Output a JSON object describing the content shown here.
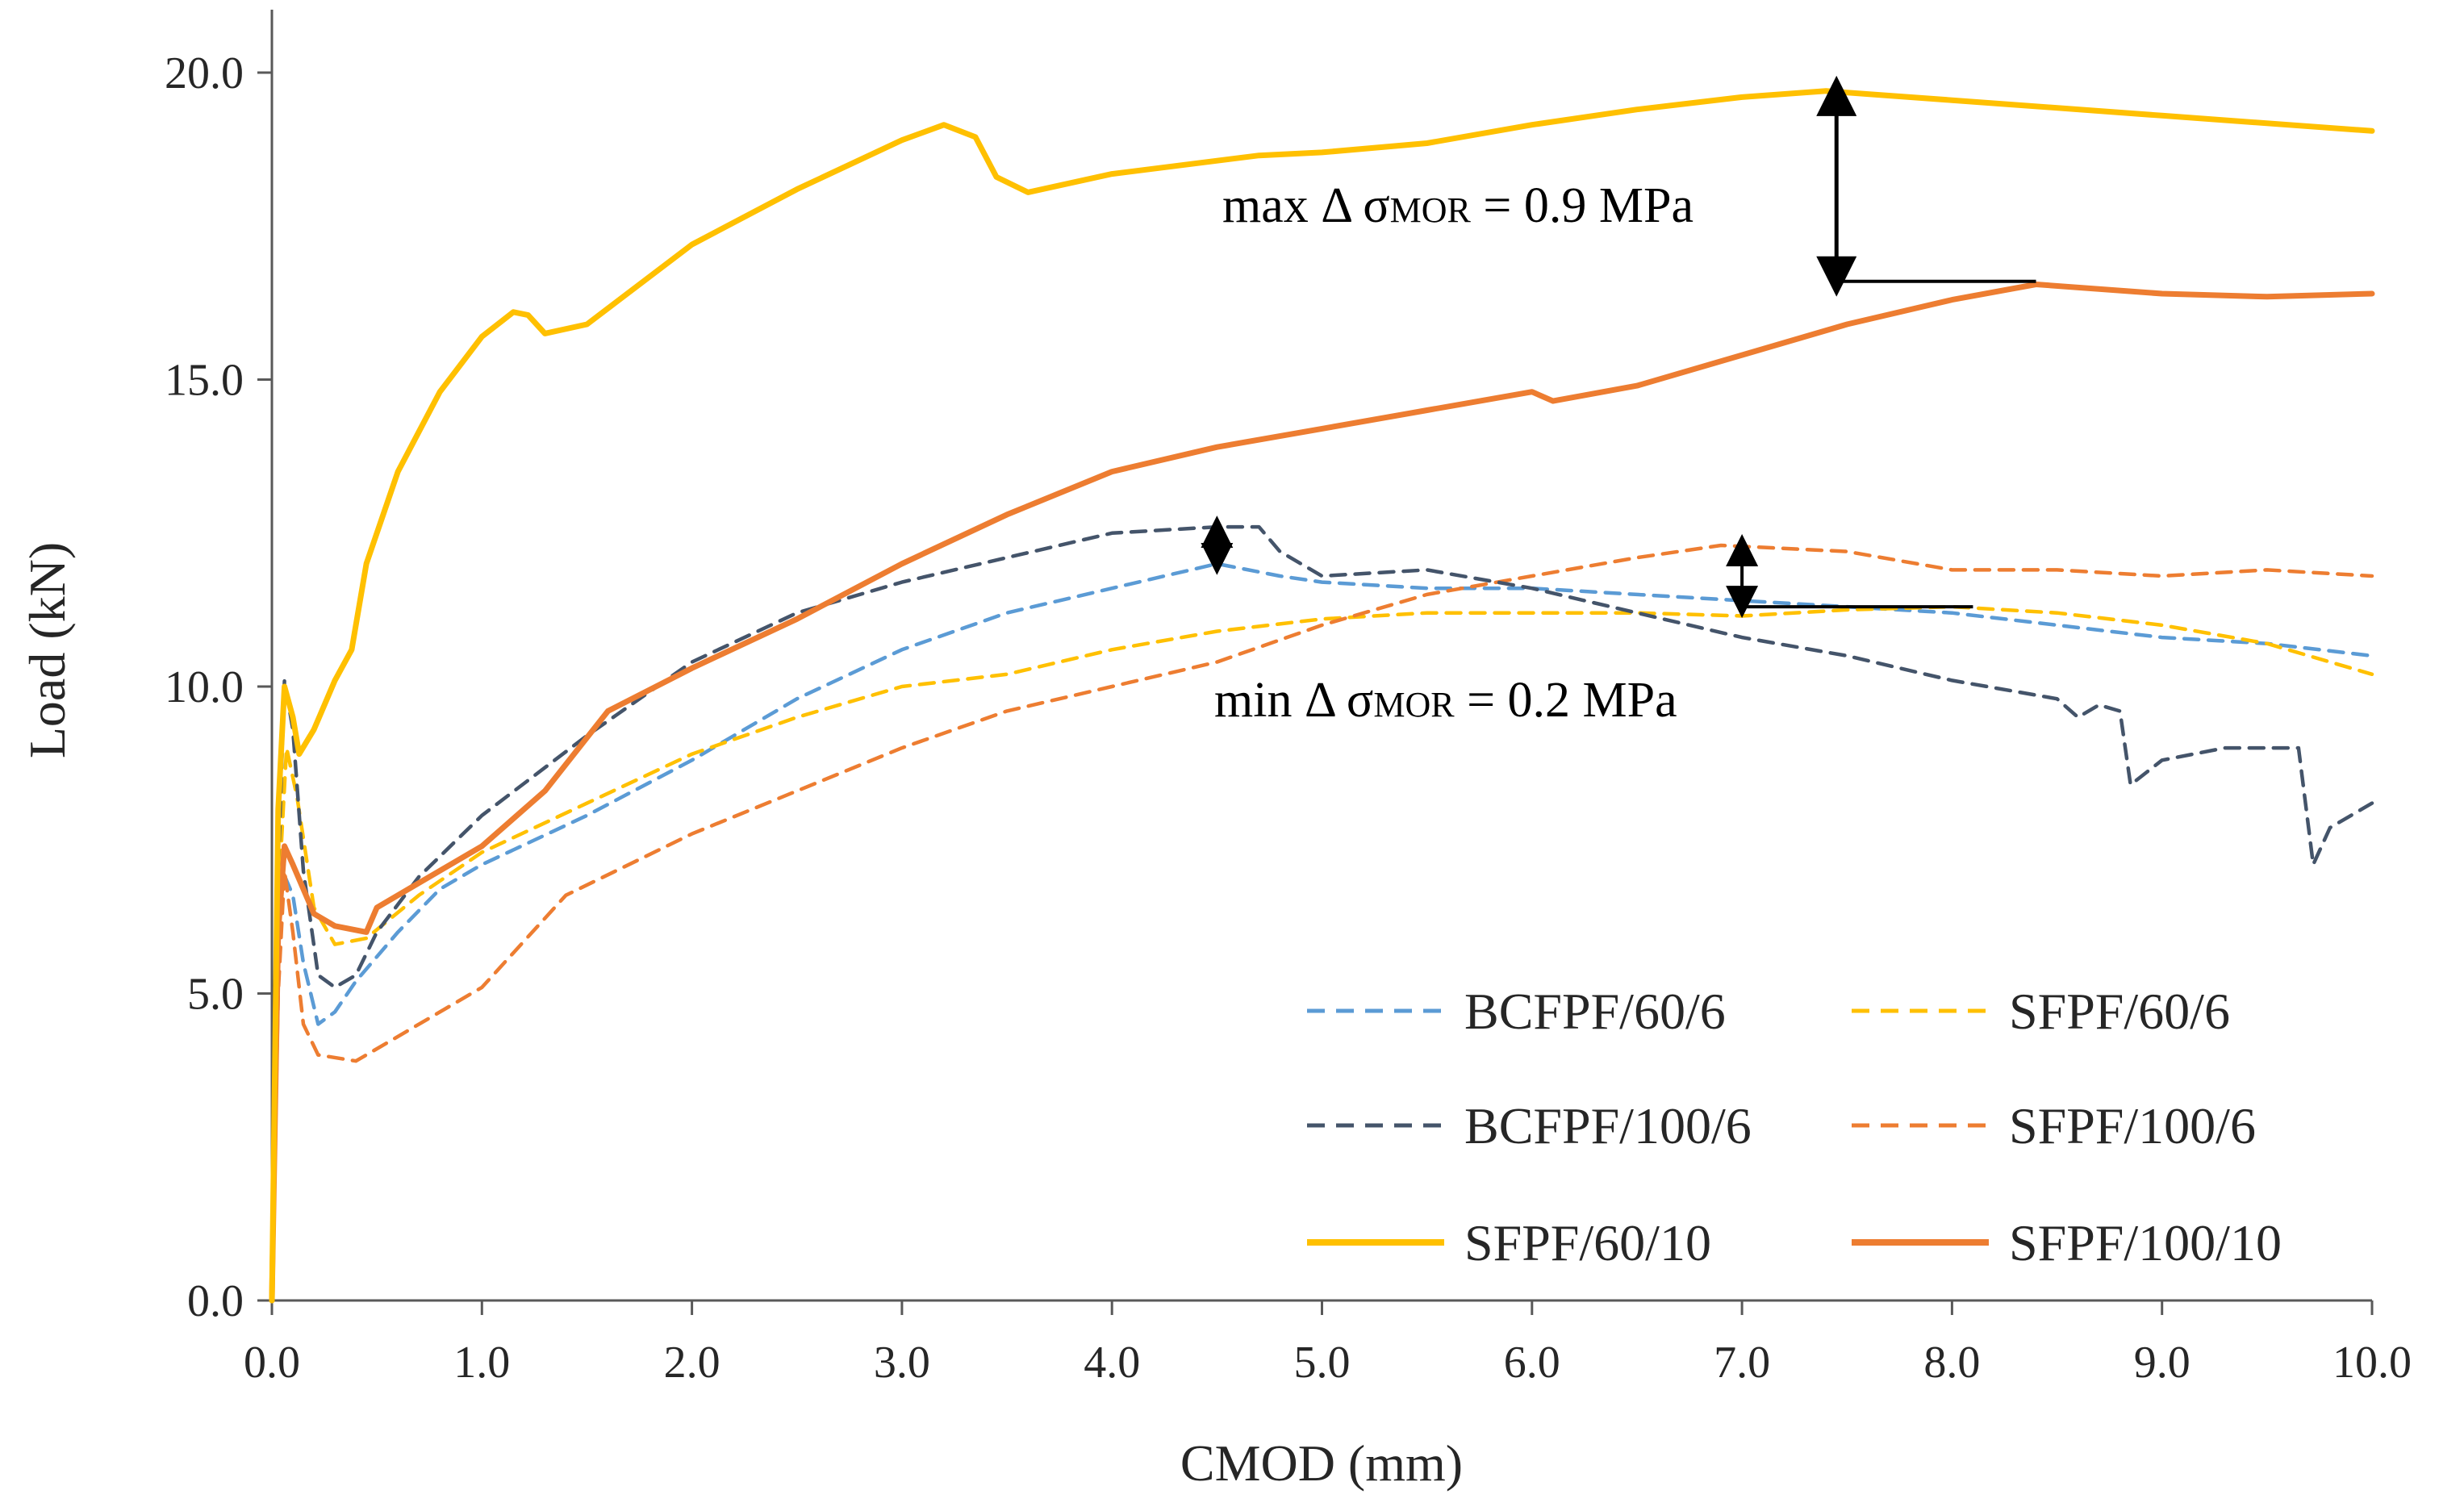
{
  "chart_data": {
    "type": "line",
    "title": "",
    "xlabel": "CMOD (mm)",
    "ylabel": "Load (kN)",
    "xlim": [
      0,
      10
    ],
    "ylim": [
      0,
      20
    ],
    "x_ticks": [
      "0.0",
      "1.0",
      "2.0",
      "3.0",
      "4.0",
      "5.0",
      "6.0",
      "7.0",
      "8.0",
      "9.0",
      "10.0"
    ],
    "y_ticks": [
      "0.0",
      "5.0",
      "10.0",
      "15.0",
      "20.0"
    ],
    "grid": false,
    "legend_position": "bottom-right",
    "series": [
      {
        "name": "BCFPF/60/6",
        "color": "#5B9BD5",
        "style": "dashed",
        "points": [
          [
            0,
            0
          ],
          [
            0.02,
            5.5
          ],
          [
            0.05,
            7.0
          ],
          [
            0.1,
            6.6
          ],
          [
            0.15,
            5.5
          ],
          [
            0.22,
            4.5
          ],
          [
            0.3,
            4.7
          ],
          [
            0.4,
            5.2
          ],
          [
            0.6,
            6.0
          ],
          [
            0.8,
            6.7
          ],
          [
            1.0,
            7.1
          ],
          [
            1.5,
            7.9
          ],
          [
            2.0,
            8.8
          ],
          [
            2.5,
            9.8
          ],
          [
            3.0,
            10.6
          ],
          [
            3.5,
            11.2
          ],
          [
            4.0,
            11.6
          ],
          [
            4.5,
            12.0
          ],
          [
            4.8,
            11.8
          ],
          [
            5.0,
            11.7
          ],
          [
            5.5,
            11.6
          ],
          [
            6.0,
            11.6
          ],
          [
            6.5,
            11.5
          ],
          [
            7.0,
            11.4
          ],
          [
            7.5,
            11.3
          ],
          [
            8.0,
            11.2
          ],
          [
            8.5,
            11.0
          ],
          [
            9.0,
            10.8
          ],
          [
            9.5,
            10.7
          ],
          [
            10.0,
            10.5
          ]
        ]
      },
      {
        "name": "SFPF/60/6",
        "color": "#FFC000",
        "style": "dashed",
        "points": [
          [
            0,
            0
          ],
          [
            0.03,
            6.5
          ],
          [
            0.07,
            9.0
          ],
          [
            0.12,
            8.2
          ],
          [
            0.2,
            6.4
          ],
          [
            0.3,
            5.8
          ],
          [
            0.45,
            5.9
          ],
          [
            0.7,
            6.6
          ],
          [
            1.0,
            7.3
          ],
          [
            1.5,
            8.1
          ],
          [
            2.0,
            8.9
          ],
          [
            2.5,
            9.5
          ],
          [
            3.0,
            10.0
          ],
          [
            3.5,
            10.2
          ],
          [
            4.0,
            10.6
          ],
          [
            4.5,
            10.9
          ],
          [
            5.0,
            11.1
          ],
          [
            5.5,
            11.2
          ],
          [
            6.0,
            11.2
          ],
          [
            6.5,
            11.2
          ],
          [
            7.0,
            11.15
          ],
          [
            7.5,
            11.25
          ],
          [
            8.0,
            11.3
          ],
          [
            8.5,
            11.2
          ],
          [
            9.0,
            11.0
          ],
          [
            9.5,
            10.7
          ],
          [
            10.0,
            10.2
          ]
        ]
      },
      {
        "name": "BCFPF/100/6",
        "color": "#44546A",
        "style": "dashed",
        "points": [
          [
            0,
            0
          ],
          [
            0.03,
            7.0
          ],
          [
            0.06,
            10.1
          ],
          [
            0.1,
            9.3
          ],
          [
            0.15,
            7.0
          ],
          [
            0.22,
            5.3
          ],
          [
            0.3,
            5.1
          ],
          [
            0.4,
            5.3
          ],
          [
            0.5,
            6.0
          ],
          [
            0.7,
            6.9
          ],
          [
            1.0,
            7.9
          ],
          [
            1.5,
            9.2
          ],
          [
            2.0,
            10.4
          ],
          [
            2.5,
            11.2
          ],
          [
            3.0,
            11.7
          ],
          [
            3.5,
            12.1
          ],
          [
            4.0,
            12.5
          ],
          [
            4.5,
            12.6
          ],
          [
            4.7,
            12.6
          ],
          [
            4.8,
            12.2
          ],
          [
            5.0,
            11.8
          ],
          [
            5.5,
            11.9
          ],
          [
            6.0,
            11.6
          ],
          [
            6.5,
            11.2
          ],
          [
            7.0,
            10.8
          ],
          [
            7.5,
            10.5
          ],
          [
            8.0,
            10.1
          ],
          [
            8.5,
            9.8
          ],
          [
            8.6,
            9.5
          ],
          [
            8.7,
            9.7
          ],
          [
            8.8,
            9.6
          ],
          [
            8.85,
            8.4
          ],
          [
            9.0,
            8.8
          ],
          [
            9.3,
            9.0
          ],
          [
            9.65,
            9.0
          ],
          [
            9.72,
            7.1
          ],
          [
            9.8,
            7.7
          ],
          [
            10.0,
            8.1
          ]
        ]
      },
      {
        "name": "SFPF/100/6",
        "color": "#ED7D31",
        "style": "dashed",
        "points": [
          [
            0,
            0
          ],
          [
            0.03,
            5.0
          ],
          [
            0.06,
            7.0
          ],
          [
            0.1,
            6.0
          ],
          [
            0.15,
            4.5
          ],
          [
            0.22,
            4.0
          ],
          [
            0.4,
            3.9
          ],
          [
            0.6,
            4.3
          ],
          [
            1.0,
            5.1
          ],
          [
            1.4,
            6.6
          ],
          [
            2.0,
            7.6
          ],
          [
            2.5,
            8.3
          ],
          [
            3.0,
            9.0
          ],
          [
            3.5,
            9.6
          ],
          [
            4.0,
            10.0
          ],
          [
            4.5,
            10.4
          ],
          [
            5.0,
            11.0
          ],
          [
            5.5,
            11.5
          ],
          [
            6.0,
            11.8
          ],
          [
            6.5,
            12.1
          ],
          [
            6.9,
            12.3
          ],
          [
            7.5,
            12.2
          ],
          [
            8.0,
            11.9
          ],
          [
            8.5,
            11.9
          ],
          [
            9.0,
            11.8
          ],
          [
            9.5,
            11.9
          ],
          [
            10.0,
            11.8
          ]
        ]
      },
      {
        "name": "SFPF/60/10",
        "color": "#FFC000",
        "style": "solid",
        "points": [
          [
            0,
            0
          ],
          [
            0.03,
            8.0
          ],
          [
            0.06,
            10.0
          ],
          [
            0.1,
            9.5
          ],
          [
            0.13,
            8.9
          ],
          [
            0.2,
            9.3
          ],
          [
            0.3,
            10.1
          ],
          [
            0.38,
            10.6
          ],
          [
            0.45,
            12.0
          ],
          [
            0.6,
            13.5
          ],
          [
            0.8,
            14.8
          ],
          [
            1.0,
            15.7
          ],
          [
            1.15,
            16.1
          ],
          [
            1.22,
            16.05
          ],
          [
            1.3,
            15.75
          ],
          [
            1.5,
            15.9
          ],
          [
            2.0,
            17.2
          ],
          [
            2.5,
            18.1
          ],
          [
            3.0,
            18.9
          ],
          [
            3.2,
            19.15
          ],
          [
            3.35,
            18.95
          ],
          [
            3.45,
            18.3
          ],
          [
            3.6,
            18.05
          ],
          [
            4.0,
            18.35
          ],
          [
            4.7,
            18.65
          ],
          [
            5.0,
            18.7
          ],
          [
            5.5,
            18.85
          ],
          [
            6.0,
            19.15
          ],
          [
            6.5,
            19.4
          ],
          [
            7.0,
            19.6
          ],
          [
            7.4,
            19.7
          ],
          [
            8.0,
            19.55
          ],
          [
            9.0,
            19.3
          ],
          [
            10.0,
            19.05
          ]
        ]
      },
      {
        "name": "SFPF/100/10",
        "color": "#ED7D31",
        "style": "solid",
        "points": [
          [
            0,
            0
          ],
          [
            0.03,
            6.0
          ],
          [
            0.06,
            7.4
          ],
          [
            0.1,
            7.1
          ],
          [
            0.2,
            6.3
          ],
          [
            0.3,
            6.1
          ],
          [
            0.45,
            6.0
          ],
          [
            0.5,
            6.4
          ],
          [
            0.7,
            6.8
          ],
          [
            1.0,
            7.4
          ],
          [
            1.3,
            8.3
          ],
          [
            1.6,
            9.6
          ],
          [
            2.0,
            10.3
          ],
          [
            2.5,
            11.1
          ],
          [
            3.0,
            12.0
          ],
          [
            3.5,
            12.8
          ],
          [
            4.0,
            13.5
          ],
          [
            4.5,
            13.9
          ],
          [
            5.0,
            14.2
          ],
          [
            5.5,
            14.5
          ],
          [
            6.0,
            14.8
          ],
          [
            6.1,
            14.65
          ],
          [
            6.5,
            14.9
          ],
          [
            7.0,
            15.4
          ],
          [
            7.5,
            15.9
          ],
          [
            8.0,
            16.3
          ],
          [
            8.4,
            16.55
          ],
          [
            9.0,
            16.4
          ],
          [
            9.5,
            16.35
          ],
          [
            10.0,
            16.4
          ]
        ]
      }
    ],
    "annotations": [
      {
        "label_main": "max Δ σ",
        "label_sub": "MOR",
        "label_end": " = 0.9 MPa",
        "x": 7.45,
        "y_top": 19.7,
        "y_bottom": 16.6,
        "x_line_end": 8.4
      },
      {
        "label_main": "min Δ σ",
        "label_sub": "MOR",
        "label_end": " = 0.2 MPa",
        "x": 7.0,
        "y_top": 12.3,
        "y_bottom": 11.3,
        "x_line_end": 8.1
      },
      {
        "x": 4.5,
        "y_top": 12.6,
        "y_bottom": 12.0
      }
    ]
  }
}
